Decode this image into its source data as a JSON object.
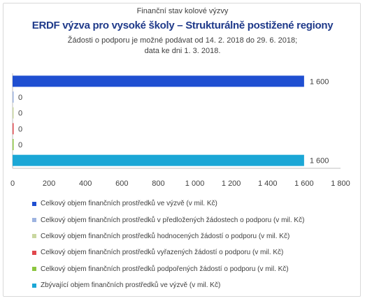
{
  "header": {
    "supertitle": "Finanční stav kolové výzvy",
    "title": "ERDF výzva pro vysoké školy – Strukturálně postižené regiony",
    "note_line1": "Žádosti o podporu je možné podávat od 14. 2. 2018 do 29. 6. 2018;",
    "note_line2": "data ke dni 1. 3. 2018."
  },
  "chart_data": {
    "type": "bar",
    "orientation": "horizontal",
    "title": "ERDF výzva pro vysoké školy – Strukturálně postižené regiony",
    "xlim": [
      0,
      1800
    ],
    "ticks": [
      0,
      200,
      400,
      600,
      800,
      1000,
      1200,
      1400,
      1600,
      1800
    ],
    "tick_labels": [
      "0",
      "200",
      "400",
      "600",
      "800",
      "1 000",
      "1 200",
      "1 400",
      "1 600",
      "1 800"
    ],
    "grid": false,
    "legend_position": "bottom",
    "series": [
      {
        "name": "Celkový objem finančních prostředků ve výzvě (v mil. Kč)",
        "value": 1600,
        "label": "1 600",
        "color": "#1f4fd1"
      },
      {
        "name": "Celkový objem finančních prostředků v předložených žádostech o podporu (v mil. Kč)",
        "value": 0,
        "label": "0",
        "color": "#9db3e0"
      },
      {
        "name": "Celkový objem finančních prostředků hodnocených žádostí o podporu (v mil. Kč)",
        "value": 0,
        "label": "0",
        "color": "#c9d7a0"
      },
      {
        "name": "Celkový objem finančních prostředků vyřazených žádostí o podporu (v mil. Kč)",
        "value": 0,
        "label": "0",
        "color": "#e0474c"
      },
      {
        "name": "Celkový objem finančních prostředků podpořených žádostí o podporu (v mil. Kč)",
        "value": 0,
        "label": "0",
        "color": "#8cc63f"
      },
      {
        "name": "Zbývající objem finančních prostředků ve výzvě (v mil. Kč)",
        "value": 1600,
        "label": "1 600",
        "color": "#1ba7d6"
      }
    ]
  }
}
